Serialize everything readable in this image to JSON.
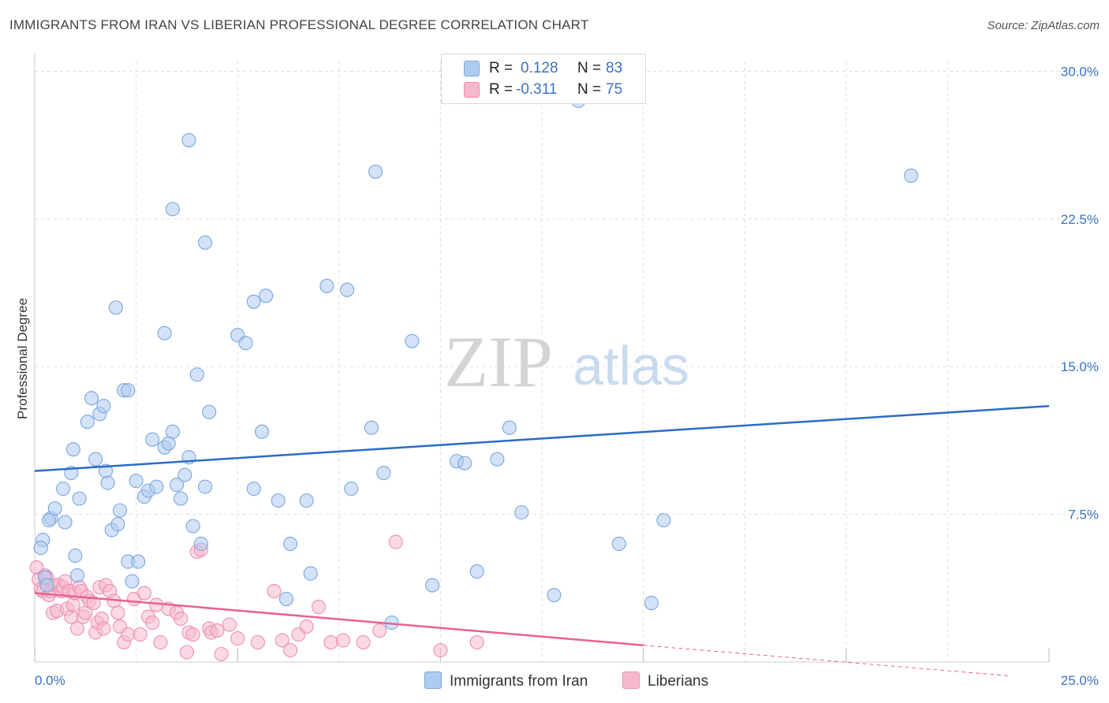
{
  "title": "IMMIGRANTS FROM IRAN VS LIBERIAN PROFESSIONAL DEGREE CORRELATION CHART",
  "source": "Source: ZipAtlas.com",
  "watermark": {
    "zip": "ZIP",
    "atlas": "atlas"
  },
  "legend": {
    "r_label": "R =",
    "n_label": "N =",
    "rows": [
      {
        "r": "0.128",
        "n": "83"
      },
      {
        "r": "-0.311",
        "n": "75"
      }
    ]
  },
  "colors": {
    "blue_fill": "#aecbf0",
    "blue_stroke": "#7aa7de",
    "blue_line": "#2a6cc8",
    "pink_fill": "#f6b9cc",
    "pink_stroke": "#ee8fae",
    "pink_line": "#e8628f",
    "grid": "#dddddd",
    "tick_text": "#3a72c2"
  },
  "chart_data": {
    "type": "scatter",
    "title": "IMMIGRANTS FROM IRAN VS LIBERIAN PROFESSIONAL DEGREE CORRELATION CHART",
    "xlabel": "",
    "ylabel": "Professional Degree",
    "xlim": [
      0,
      25
    ],
    "ylim": [
      0,
      30.5
    ],
    "x_tick_labels": [
      "0.0%",
      "25.0%"
    ],
    "y_ticks": [
      7.5,
      15.0,
      22.5,
      30.0
    ],
    "y_tick_labels": [
      "7.5%",
      "15.0%",
      "22.5%",
      "30.0%"
    ],
    "grid": true,
    "legend_position": "top-center",
    "series": [
      {
        "name": "Immigrants from Iran",
        "color": "#aecbf0",
        "trend": {
          "x": [
            0,
            25
          ],
          "y": [
            9.7,
            13.0
          ]
        },
        "points": [
          [
            0.2,
            6.2
          ],
          [
            0.15,
            5.8
          ],
          [
            0.4,
            7.3
          ],
          [
            0.35,
            7.2
          ],
          [
            0.5,
            7.8
          ],
          [
            0.7,
            8.8
          ],
          [
            0.75,
            7.1
          ],
          [
            0.9,
            9.6
          ],
          [
            0.95,
            10.8
          ],
          [
            1.0,
            5.4
          ],
          [
            1.1,
            8.3
          ],
          [
            1.3,
            12.2
          ],
          [
            1.4,
            13.4
          ],
          [
            1.5,
            10.3
          ],
          [
            1.6,
            12.6
          ],
          [
            1.7,
            13.0
          ],
          [
            1.75,
            9.7
          ],
          [
            1.8,
            9.1
          ],
          [
            1.9,
            6.7
          ],
          [
            2.05,
            7.0
          ],
          [
            2.1,
            7.7
          ],
          [
            2.3,
            5.1
          ],
          [
            2.4,
            4.1
          ],
          [
            2.5,
            9.2
          ],
          [
            2.55,
            5.1
          ],
          [
            2.2,
            13.8
          ],
          [
            2.0,
            18.0
          ],
          [
            2.3,
            13.8
          ],
          [
            2.7,
            8.4
          ],
          [
            2.8,
            8.7
          ],
          [
            2.9,
            11.3
          ],
          [
            3.0,
            8.9
          ],
          [
            3.2,
            10.9
          ],
          [
            3.3,
            11.1
          ],
          [
            3.4,
            11.7
          ],
          [
            3.5,
            9.0
          ],
          [
            3.6,
            8.3
          ],
          [
            3.7,
            9.5
          ],
          [
            3.8,
            10.4
          ],
          [
            3.9,
            6.9
          ],
          [
            4.0,
            14.6
          ],
          [
            4.1,
            6.0
          ],
          [
            4.2,
            8.9
          ],
          [
            4.3,
            12.7
          ],
          [
            4.2,
            21.3
          ],
          [
            3.2,
            16.7
          ],
          [
            3.4,
            23.0
          ],
          [
            3.8,
            26.5
          ],
          [
            5.0,
            16.6
          ],
          [
            5.2,
            16.2
          ],
          [
            5.4,
            18.3
          ],
          [
            5.7,
            18.6
          ],
          [
            5.4,
            8.8
          ],
          [
            5.6,
            11.7
          ],
          [
            6.0,
            8.2
          ],
          [
            6.2,
            3.2
          ],
          [
            6.3,
            6.0
          ],
          [
            6.7,
            8.2
          ],
          [
            6.8,
            4.5
          ],
          [
            7.2,
            19.1
          ],
          [
            7.7,
            18.9
          ],
          [
            7.8,
            8.8
          ],
          [
            8.3,
            11.9
          ],
          [
            8.4,
            24.9
          ],
          [
            8.6,
            9.6
          ],
          [
            8.8,
            2.0
          ],
          [
            9.3,
            16.3
          ],
          [
            9.8,
            3.9
          ],
          [
            10.4,
            10.2
          ],
          [
            10.6,
            10.1
          ],
          [
            10.9,
            4.6
          ],
          [
            11.4,
            10.3
          ],
          [
            11.7,
            11.9
          ],
          [
            12.0,
            7.6
          ],
          [
            12.8,
            3.4
          ],
          [
            13.4,
            28.5
          ],
          [
            14.4,
            6.0
          ],
          [
            15.2,
            3.0
          ],
          [
            15.5,
            7.2
          ],
          [
            21.6,
            24.7
          ],
          [
            0.25,
            4.3
          ],
          [
            0.3,
            3.9
          ],
          [
            1.05,
            4.4
          ]
        ]
      },
      {
        "name": "Liberians",
        "color": "#f6b9cc",
        "trend": {
          "x": [
            0,
            15
          ],
          "y": [
            3.5,
            0.85
          ],
          "dashed_x": [
            15,
            24
          ],
          "dashed_y": [
            0.85,
            -0.7
          ]
        },
        "points": [
          [
            0.05,
            4.8
          ],
          [
            0.1,
            4.2
          ],
          [
            0.15,
            3.7
          ],
          [
            0.2,
            3.6
          ],
          [
            0.25,
            4.4
          ],
          [
            0.3,
            4.3
          ],
          [
            0.35,
            3.4
          ],
          [
            0.4,
            3.6
          ],
          [
            0.45,
            2.5
          ],
          [
            0.5,
            3.9
          ],
          [
            0.55,
            2.6
          ],
          [
            0.6,
            3.9
          ],
          [
            0.65,
            3.6
          ],
          [
            0.7,
            3.8
          ],
          [
            0.75,
            4.1
          ],
          [
            0.8,
            2.7
          ],
          [
            0.85,
            3.6
          ],
          [
            0.9,
            2.3
          ],
          [
            0.95,
            2.9
          ],
          [
            1.0,
            3.5
          ],
          [
            1.05,
            1.7
          ],
          [
            1.1,
            3.8
          ],
          [
            1.15,
            3.6
          ],
          [
            1.2,
            2.3
          ],
          [
            1.25,
            2.5
          ],
          [
            1.3,
            3.3
          ],
          [
            1.35,
            3.1
          ],
          [
            1.45,
            3.0
          ],
          [
            1.5,
            1.5
          ],
          [
            1.55,
            2.0
          ],
          [
            1.6,
            3.8
          ],
          [
            1.65,
            2.2
          ],
          [
            1.7,
            1.7
          ],
          [
            1.75,
            3.9
          ],
          [
            1.85,
            3.6
          ],
          [
            1.95,
            3.1
          ],
          [
            2.05,
            2.5
          ],
          [
            2.1,
            1.8
          ],
          [
            2.2,
            1.0
          ],
          [
            2.3,
            1.4
          ],
          [
            2.45,
            3.2
          ],
          [
            2.6,
            1.4
          ],
          [
            2.7,
            3.5
          ],
          [
            2.8,
            2.3
          ],
          [
            2.9,
            2.0
          ],
          [
            3.0,
            2.9
          ],
          [
            3.1,
            1.0
          ],
          [
            3.3,
            2.7
          ],
          [
            3.5,
            2.5
          ],
          [
            3.6,
            2.2
          ],
          [
            3.75,
            0.5
          ],
          [
            3.8,
            1.5
          ],
          [
            3.9,
            1.4
          ],
          [
            4.0,
            5.6
          ],
          [
            4.1,
            5.7
          ],
          [
            4.3,
            1.7
          ],
          [
            4.35,
            1.5
          ],
          [
            4.5,
            1.6
          ],
          [
            4.6,
            0.4
          ],
          [
            4.8,
            1.9
          ],
          [
            5.0,
            1.2
          ],
          [
            5.5,
            1.0
          ],
          [
            5.9,
            3.6
          ],
          [
            6.1,
            1.1
          ],
          [
            6.3,
            0.6
          ],
          [
            6.5,
            1.4
          ],
          [
            6.7,
            1.8
          ],
          [
            7.0,
            2.8
          ],
          [
            7.3,
            1.0
          ],
          [
            7.6,
            1.1
          ],
          [
            8.1,
            1.0
          ],
          [
            8.5,
            1.6
          ],
          [
            8.9,
            6.1
          ],
          [
            10.0,
            0.6
          ],
          [
            10.9,
            1.0
          ]
        ]
      }
    ]
  },
  "bottom_legend": {
    "blue": "Immigrants from Iran",
    "pink": "Liberians"
  }
}
